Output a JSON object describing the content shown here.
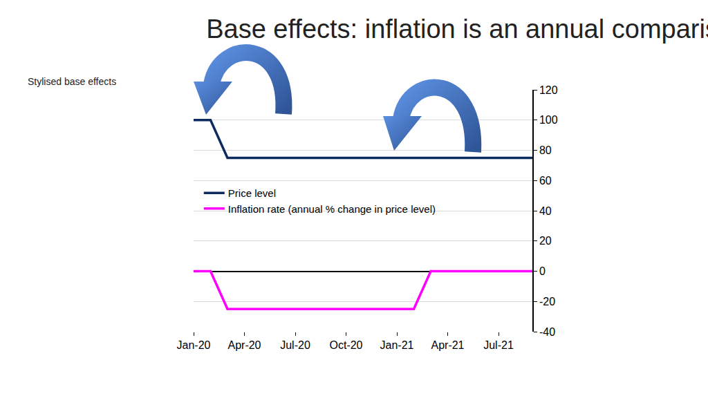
{
  "chart_data": {
    "type": "line",
    "title": "Base effects: inflation is an annual comparison",
    "subtitle": "Stylised base effects",
    "categories": [
      "Jan-20",
      null,
      null,
      "Apr-20",
      null,
      null,
      "Jul-20",
      null,
      null,
      "Oct-20",
      null,
      null,
      "Jan-21",
      null,
      null,
      "Apr-21",
      null,
      null,
      "Jul-21",
      null,
      null
    ],
    "series": [
      {
        "name": "Price level",
        "color": "#0d2b5e",
        "values": [
          100,
          100,
          75,
          75,
          75,
          75,
          75,
          75,
          75,
          75,
          75,
          75,
          75,
          75,
          75,
          75,
          75,
          75,
          75,
          75,
          75
        ]
      },
      {
        "name": "Inflation rate (annual % change in price level)",
        "color": "#ff00ff",
        "values": [
          0,
          0,
          -25,
          -25,
          -25,
          -25,
          -25,
          -25,
          -25,
          -25,
          -25,
          -25,
          -25,
          -25,
          0,
          0,
          0,
          0,
          0,
          0,
          0
        ]
      }
    ],
    "ylim": [
      -40,
      120
    ],
    "yticks": [
      -40,
      -20,
      0,
      20,
      40,
      60,
      80,
      100,
      120
    ],
    "grid": true,
    "legend": "left"
  }
}
